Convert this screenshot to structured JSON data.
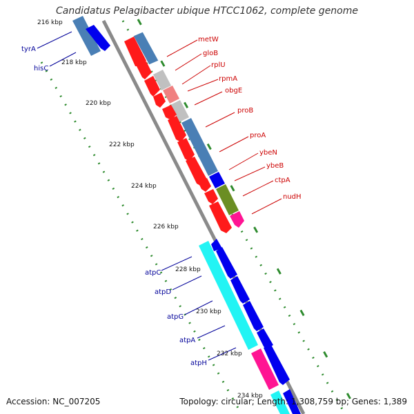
{
  "title": "Candidatus Pelagibacter ubique HTCC1062, complete genome",
  "footer": {
    "accession": "Accession: NC_007205",
    "summary": "Topology: circular; Length: 1,308,759 bp; Genes: 1,389"
  },
  "colors": {
    "backbone": "#8a8a8a",
    "tick_green": "#2e8b2e",
    "label_red": "#cc0000",
    "label_blue": "#000099",
    "red": "#ff1a1a",
    "blue": "#0000ee",
    "steel": "#4a7fb5",
    "cyan": "#22f4f4",
    "pink": "#ff1493",
    "olive": "#6b8e23",
    "lightgray": "#c0c0c0",
    "salmon": "#f08080"
  },
  "kbp_labels": [
    "216 kbp",
    "218 kbp",
    "220 kbp",
    "222 kbp",
    "224 kbp",
    "226 kbp",
    "228 kbp",
    "230 kbp",
    "232 kbp",
    "234 kbp"
  ],
  "gene_labels_right": [
    "metW",
    "gloB",
    "rplU",
    "rpmA",
    "obgE",
    "proB",
    "proA",
    "ybeN",
    "ybeB",
    "ctpA",
    "nudH"
  ],
  "gene_labels_left": [
    "tyrA",
    "hisC",
    "atpC",
    "atpD",
    "atpG",
    "atpA",
    "atpH"
  ]
}
